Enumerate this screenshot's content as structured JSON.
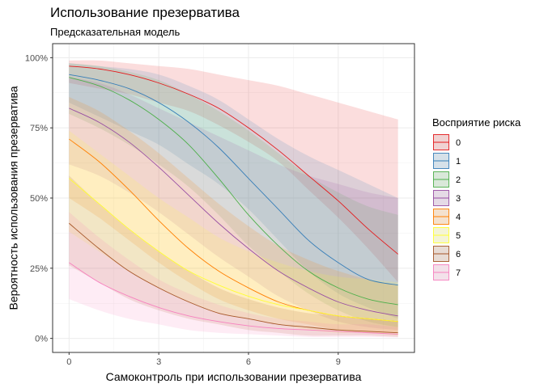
{
  "chart_data": {
    "type": "line",
    "title": "Использование презерватива",
    "subtitle": "Предсказательная модель",
    "xlabel": "Самоконтроль при использовании презерватива",
    "ylabel": "Вероятность использования презерватива",
    "xlim": [
      -0.55,
      11.55
    ],
    "ylim": [
      -0.05,
      1.05
    ],
    "xticks": [
      0,
      3,
      6,
      9
    ],
    "xtick_labels": [
      "0",
      "3",
      "6",
      "9"
    ],
    "yticks": [
      0,
      0.25,
      0.5,
      0.75,
      1.0
    ],
    "ytick_labels": [
      "0%",
      "25%",
      "50%",
      "75%",
      "100%"
    ],
    "grid": true,
    "x": [
      0,
      1,
      2,
      3,
      4,
      5,
      6,
      7,
      8,
      9,
      10,
      11
    ],
    "legend": {
      "title": "Восприятие риска",
      "position": "right"
    },
    "series": [
      {
        "name": "0",
        "color": "#e41a1c",
        "values": [
          0.97,
          0.96,
          0.94,
          0.91,
          0.87,
          0.82,
          0.75,
          0.67,
          0.58,
          0.49,
          0.39,
          0.3
        ],
        "lower": [
          0.91,
          0.89,
          0.87,
          0.84,
          0.81,
          0.76,
          0.7,
          0.63,
          0.53,
          0.43,
          0.32,
          0.2
        ],
        "upper": [
          0.99,
          0.99,
          0.98,
          0.97,
          0.96,
          0.94,
          0.92,
          0.9,
          0.87,
          0.84,
          0.81,
          0.78
        ]
      },
      {
        "name": "1",
        "color": "#377eb8",
        "values": [
          0.94,
          0.92,
          0.89,
          0.84,
          0.77,
          0.68,
          0.57,
          0.46,
          0.35,
          0.27,
          0.21,
          0.19
        ],
        "lower": [
          0.84,
          0.79,
          0.74,
          0.69,
          0.62,
          0.55,
          0.46,
          0.35,
          0.24,
          0.16,
          0.11,
          0.07
        ],
        "upper": [
          0.98,
          0.97,
          0.96,
          0.94,
          0.9,
          0.85,
          0.78,
          0.71,
          0.65,
          0.6,
          0.55,
          0.5
        ]
      },
      {
        "name": "2",
        "color": "#4daf4a",
        "values": [
          0.93,
          0.9,
          0.85,
          0.78,
          0.69,
          0.57,
          0.44,
          0.33,
          0.24,
          0.18,
          0.14,
          0.12
        ],
        "lower": [
          0.8,
          0.75,
          0.69,
          0.62,
          0.54,
          0.44,
          0.33,
          0.24,
          0.16,
          0.1,
          0.06,
          0.04
        ],
        "upper": [
          0.98,
          0.97,
          0.95,
          0.92,
          0.87,
          0.81,
          0.74,
          0.66,
          0.58,
          0.52,
          0.47,
          0.44
        ]
      },
      {
        "name": "3",
        "color": "#984ea3",
        "values": [
          0.82,
          0.77,
          0.7,
          0.61,
          0.51,
          0.41,
          0.32,
          0.24,
          0.18,
          0.13,
          0.1,
          0.08
        ],
        "lower": [
          0.62,
          0.58,
          0.52,
          0.45,
          0.37,
          0.29,
          0.22,
          0.15,
          0.1,
          0.06,
          0.04,
          0.03
        ],
        "upper": [
          0.93,
          0.91,
          0.87,
          0.82,
          0.77,
          0.72,
          0.67,
          0.62,
          0.58,
          0.55,
          0.52,
          0.5
        ]
      },
      {
        "name": "4",
        "color": "#ff7f00",
        "values": [
          0.71,
          0.63,
          0.53,
          0.42,
          0.32,
          0.24,
          0.18,
          0.13,
          0.1,
          0.08,
          0.07,
          0.06
        ],
        "lower": [
          0.5,
          0.43,
          0.35,
          0.27,
          0.2,
          0.14,
          0.1,
          0.07,
          0.05,
          0.03,
          0.02,
          0.02
        ],
        "upper": [
          0.86,
          0.81,
          0.74,
          0.66,
          0.57,
          0.48,
          0.4,
          0.33,
          0.28,
          0.24,
          0.21,
          0.19
        ]
      },
      {
        "name": "5",
        "color": "#ffff33",
        "values": [
          0.57,
          0.48,
          0.39,
          0.31,
          0.24,
          0.19,
          0.15,
          0.12,
          0.1,
          0.08,
          0.07,
          0.06
        ],
        "lower": [
          0.38,
          0.31,
          0.24,
          0.18,
          0.13,
          0.09,
          0.07,
          0.05,
          0.03,
          0.02,
          0.02,
          0.01
        ],
        "upper": [
          0.74,
          0.66,
          0.58,
          0.5,
          0.43,
          0.36,
          0.31,
          0.27,
          0.24,
          0.22,
          0.21,
          0.2
        ]
      },
      {
        "name": "6",
        "color": "#a65628",
        "values": [
          0.41,
          0.32,
          0.24,
          0.18,
          0.13,
          0.09,
          0.07,
          0.05,
          0.04,
          0.03,
          0.025,
          0.02
        ],
        "lower": [
          0.26,
          0.2,
          0.14,
          0.1,
          0.07,
          0.05,
          0.03,
          0.02,
          0.01,
          0.01,
          0.01,
          0.005
        ],
        "upper": [
          0.58,
          0.48,
          0.39,
          0.31,
          0.24,
          0.18,
          0.14,
          0.11,
          0.09,
          0.08,
          0.07,
          0.06
        ]
      },
      {
        "name": "7",
        "color": "#f781bf",
        "values": [
          0.27,
          0.2,
          0.15,
          0.11,
          0.08,
          0.06,
          0.045,
          0.035,
          0.03,
          0.025,
          0.02,
          0.015
        ],
        "lower": [
          0.14,
          0.1,
          0.07,
          0.05,
          0.03,
          0.02,
          0.015,
          0.01,
          0.005,
          0.005,
          0.005,
          0.003
        ],
        "upper": [
          0.45,
          0.36,
          0.28,
          0.21,
          0.16,
          0.12,
          0.09,
          0.07,
          0.06,
          0.05,
          0.05,
          0.04
        ]
      }
    ]
  }
}
